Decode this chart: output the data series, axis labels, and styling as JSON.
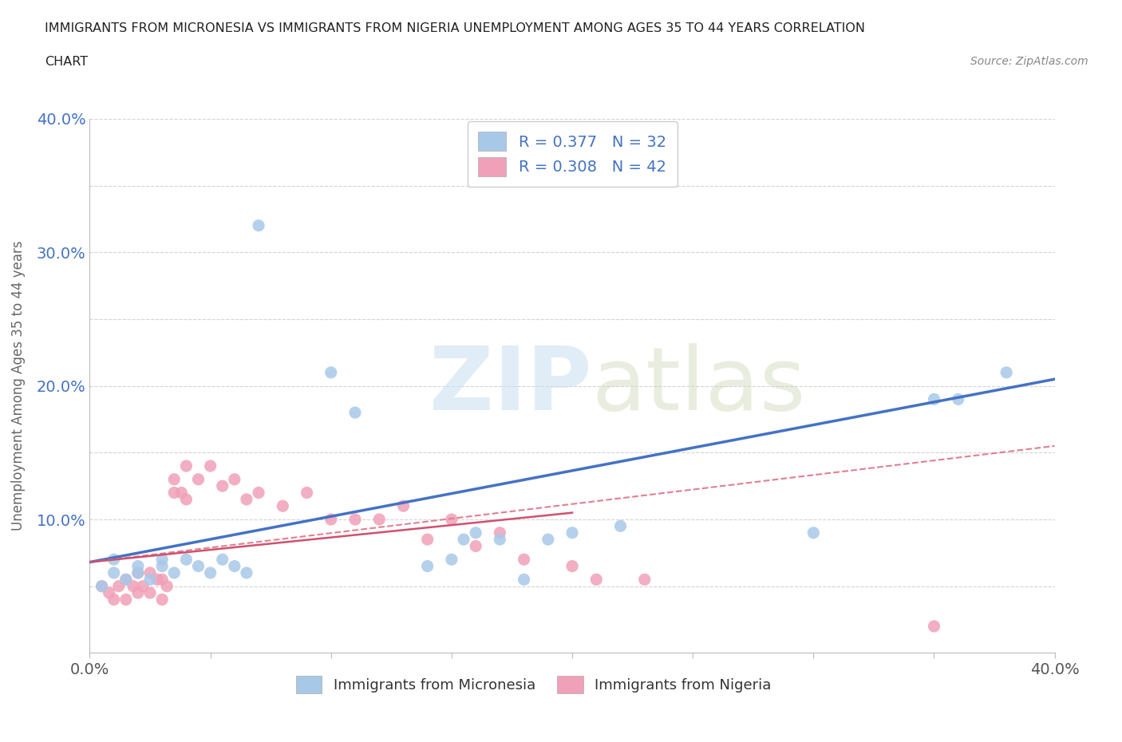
{
  "title_line1": "IMMIGRANTS FROM MICRONESIA VS IMMIGRANTS FROM NIGERIA UNEMPLOYMENT AMONG AGES 35 TO 44 YEARS CORRELATION",
  "title_line2": "CHART",
  "source": "Source: ZipAtlas.com",
  "ylabel": "Unemployment Among Ages 35 to 44 years",
  "xlim": [
    0.0,
    0.4
  ],
  "ylim": [
    0.0,
    0.4
  ],
  "micronesia_color": "#a8c8e8",
  "nigeria_color": "#f0a0b8",
  "micronesia_line_color": "#4472c4",
  "nigeria_line_color": "#d05070",
  "nigeria_dash_color": "#e08090",
  "R_micronesia": 0.377,
  "N_micronesia": 32,
  "R_nigeria": 0.308,
  "N_nigeria": 42,
  "background_color": "#ffffff",
  "grid_color": "#c8c8c8",
  "micronesia_x": [
    0.005,
    0.01,
    0.01,
    0.015,
    0.02,
    0.02,
    0.025,
    0.03,
    0.03,
    0.035,
    0.04,
    0.045,
    0.05,
    0.055,
    0.06,
    0.065,
    0.07,
    0.1,
    0.11,
    0.14,
    0.15,
    0.155,
    0.16,
    0.17,
    0.18,
    0.19,
    0.2,
    0.22,
    0.3,
    0.35,
    0.36,
    0.38
  ],
  "micronesia_y": [
    0.05,
    0.06,
    0.07,
    0.055,
    0.065,
    0.06,
    0.055,
    0.07,
    0.065,
    0.06,
    0.07,
    0.065,
    0.06,
    0.07,
    0.065,
    0.06,
    0.32,
    0.21,
    0.18,
    0.065,
    0.07,
    0.085,
    0.09,
    0.085,
    0.055,
    0.085,
    0.09,
    0.095,
    0.09,
    0.19,
    0.19,
    0.21
  ],
  "nigeria_x": [
    0.005,
    0.008,
    0.01,
    0.012,
    0.015,
    0.015,
    0.018,
    0.02,
    0.02,
    0.022,
    0.025,
    0.025,
    0.028,
    0.03,
    0.03,
    0.032,
    0.035,
    0.035,
    0.038,
    0.04,
    0.04,
    0.045,
    0.05,
    0.055,
    0.06,
    0.065,
    0.07,
    0.08,
    0.09,
    0.1,
    0.11,
    0.12,
    0.13,
    0.14,
    0.15,
    0.16,
    0.17,
    0.18,
    0.2,
    0.21,
    0.23,
    0.35
  ],
  "nigeria_y": [
    0.05,
    0.045,
    0.04,
    0.05,
    0.055,
    0.04,
    0.05,
    0.06,
    0.045,
    0.05,
    0.06,
    0.045,
    0.055,
    0.055,
    0.04,
    0.05,
    0.12,
    0.13,
    0.12,
    0.14,
    0.115,
    0.13,
    0.14,
    0.125,
    0.13,
    0.115,
    0.12,
    0.11,
    0.12,
    0.1,
    0.1,
    0.1,
    0.11,
    0.085,
    0.1,
    0.08,
    0.09,
    0.07,
    0.065,
    0.055,
    0.055,
    0.02
  ]
}
